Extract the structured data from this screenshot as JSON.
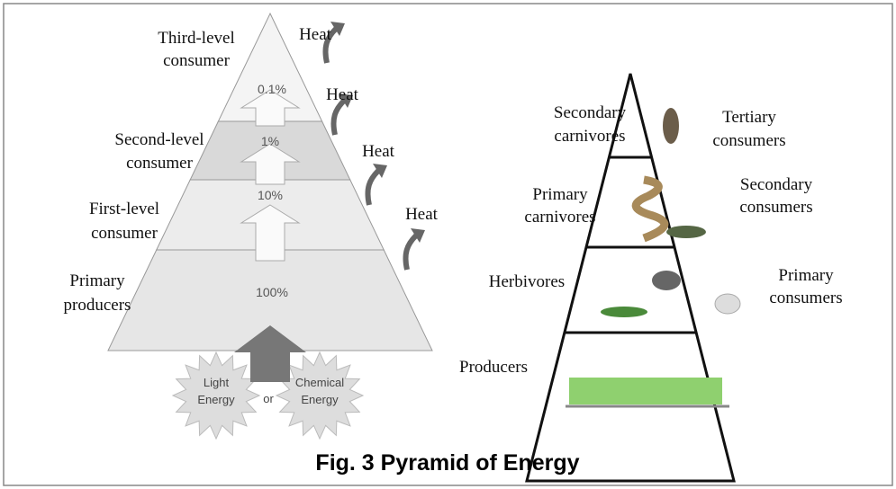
{
  "left_pyramid": {
    "levels": [
      {
        "label": [
          "Third-level",
          "consumer"
        ],
        "percent": "0.1%",
        "heat": "Heat"
      },
      {
        "label": [
          "Second-level",
          "consumer"
        ],
        "percent": "1%",
        "heat": "Heat"
      },
      {
        "label": [
          "First-level",
          "consumer"
        ],
        "percent": "10%",
        "heat": "Heat"
      },
      {
        "label": [
          "Primary",
          "producers"
        ],
        "percent": "100%",
        "heat": "Heat"
      }
    ],
    "sources": {
      "light": [
        "Light",
        "Energy"
      ],
      "connector": "or",
      "chemical": [
        "Chemical",
        "Energy"
      ]
    }
  },
  "right_pyramid": {
    "levels": [
      {
        "left": [
          "Secondary",
          "carnivores"
        ],
        "right": [
          "Tertiary",
          "consumers"
        ]
      },
      {
        "left": [
          "Primary",
          "carnivores"
        ],
        "right": [
          "Secondary",
          "consumers"
        ]
      },
      {
        "left": [
          "Herbivores"
        ],
        "right": [
          "Primary",
          "consumers"
        ]
      },
      {
        "left": [
          "Producers"
        ]
      }
    ]
  },
  "caption": "Fig. 3 Pyramid of Energy"
}
